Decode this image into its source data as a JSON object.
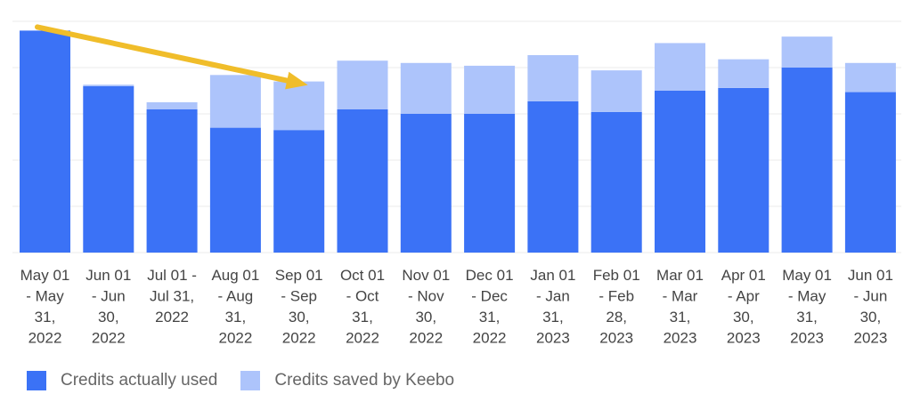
{
  "chart_data": {
    "type": "bar",
    "stacked": true,
    "categories": [
      [
        "May 01",
        "- May",
        "31,",
        "2022"
      ],
      [
        "Jun 01",
        "- Jun",
        "30,",
        "2022"
      ],
      [
        "Jul 01 -",
        "Jul 31,",
        "2022"
      ],
      [
        "Aug 01",
        "- Aug",
        "31,",
        "2022"
      ],
      [
        "Sep 01",
        "- Sep",
        "30,",
        "2022"
      ],
      [
        "Oct 01",
        "- Oct",
        "31,",
        "2022"
      ],
      [
        "Nov 01",
        "- Nov",
        "30,",
        "2022"
      ],
      [
        "Dec 01",
        "- Dec",
        "31,",
        "2022"
      ],
      [
        "Jan 01",
        "- Jan",
        "31,",
        "2023"
      ],
      [
        "Feb 01",
        "- Feb",
        "28,",
        "2023"
      ],
      [
        "Mar 01",
        "- Mar",
        "31,",
        "2023"
      ],
      [
        "Apr 01",
        "- Apr",
        "30,",
        "2023"
      ],
      [
        "May 01",
        "- May",
        "31,",
        "2023"
      ],
      [
        "Jun 01",
        "- Jun",
        "30,",
        "2023"
      ]
    ],
    "series": [
      {
        "name": "Credits actually used",
        "color": "#3b72f6",
        "values": [
          4.8,
          3.6,
          3.1,
          2.7,
          2.65,
          3.1,
          3.0,
          3.0,
          3.27,
          3.04,
          3.5,
          3.56,
          4.0,
          3.47
        ]
      },
      {
        "name": "Credits saved by Keebo",
        "color": "#adc4fb",
        "values": [
          0,
          0.03,
          0.15,
          1.14,
          1.05,
          1.05,
          1.1,
          1.04,
          1.0,
          0.9,
          1.03,
          0.62,
          0.67,
          0.63
        ]
      }
    ],
    "ylim": [
      0,
      5
    ],
    "grid": true,
    "yticks_visible": false,
    "legend_position": "bottom-left",
    "annotation": {
      "type": "arrow",
      "color": "#f0bd2a",
      "from_bar": 0,
      "to_bar": 4
    }
  }
}
